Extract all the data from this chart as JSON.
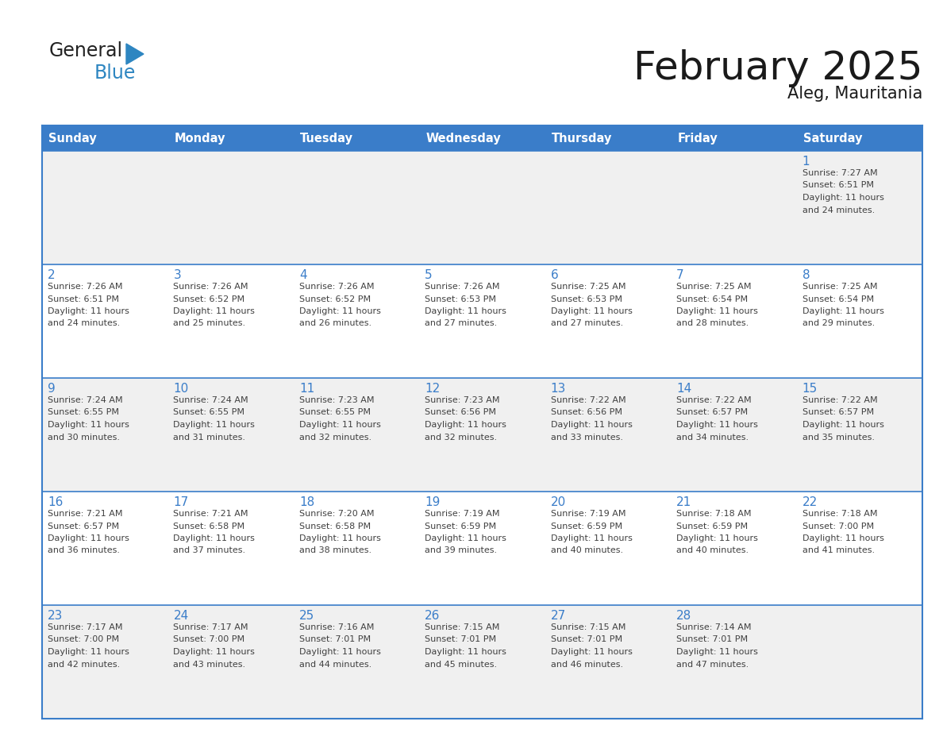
{
  "title": "February 2025",
  "subtitle": "Aleg, Mauritania",
  "days_of_week": [
    "Sunday",
    "Monday",
    "Tuesday",
    "Wednesday",
    "Thursday",
    "Friday",
    "Saturday"
  ],
  "header_bg": "#3A7DC9",
  "header_text_color": "#FFFFFF",
  "cell_bg_odd": "#F0F0F0",
  "cell_bg_even": "#FFFFFF",
  "day_number_color": "#3A7DC9",
  "text_color": "#404040",
  "line_color": "#3A7DC9",
  "logo_general_color": "#222222",
  "logo_blue_color": "#2E86C1",
  "calendar_data": [
    [
      null,
      null,
      null,
      null,
      null,
      null,
      {
        "day": 1,
        "sunrise": "7:27 AM",
        "sunset": "6:51 PM",
        "daylight": "11 hours and 24 minutes."
      }
    ],
    [
      {
        "day": 2,
        "sunrise": "7:26 AM",
        "sunset": "6:51 PM",
        "daylight": "11 hours and 24 minutes."
      },
      {
        "day": 3,
        "sunrise": "7:26 AM",
        "sunset": "6:52 PM",
        "daylight": "11 hours and 25 minutes."
      },
      {
        "day": 4,
        "sunrise": "7:26 AM",
        "sunset": "6:52 PM",
        "daylight": "11 hours and 26 minutes."
      },
      {
        "day": 5,
        "sunrise": "7:26 AM",
        "sunset": "6:53 PM",
        "daylight": "11 hours and 27 minutes."
      },
      {
        "day": 6,
        "sunrise": "7:25 AM",
        "sunset": "6:53 PM",
        "daylight": "11 hours and 27 minutes."
      },
      {
        "day": 7,
        "sunrise": "7:25 AM",
        "sunset": "6:54 PM",
        "daylight": "11 hours and 28 minutes."
      },
      {
        "day": 8,
        "sunrise": "7:25 AM",
        "sunset": "6:54 PM",
        "daylight": "11 hours and 29 minutes."
      }
    ],
    [
      {
        "day": 9,
        "sunrise": "7:24 AM",
        "sunset": "6:55 PM",
        "daylight": "11 hours and 30 minutes."
      },
      {
        "day": 10,
        "sunrise": "7:24 AM",
        "sunset": "6:55 PM",
        "daylight": "11 hours and 31 minutes."
      },
      {
        "day": 11,
        "sunrise": "7:23 AM",
        "sunset": "6:55 PM",
        "daylight": "11 hours and 32 minutes."
      },
      {
        "day": 12,
        "sunrise": "7:23 AM",
        "sunset": "6:56 PM",
        "daylight": "11 hours and 32 minutes."
      },
      {
        "day": 13,
        "sunrise": "7:22 AM",
        "sunset": "6:56 PM",
        "daylight": "11 hours and 33 minutes."
      },
      {
        "day": 14,
        "sunrise": "7:22 AM",
        "sunset": "6:57 PM",
        "daylight": "11 hours and 34 minutes."
      },
      {
        "day": 15,
        "sunrise": "7:22 AM",
        "sunset": "6:57 PM",
        "daylight": "11 hours and 35 minutes."
      }
    ],
    [
      {
        "day": 16,
        "sunrise": "7:21 AM",
        "sunset": "6:57 PM",
        "daylight": "11 hours and 36 minutes."
      },
      {
        "day": 17,
        "sunrise": "7:21 AM",
        "sunset": "6:58 PM",
        "daylight": "11 hours and 37 minutes."
      },
      {
        "day": 18,
        "sunrise": "7:20 AM",
        "sunset": "6:58 PM",
        "daylight": "11 hours and 38 minutes."
      },
      {
        "day": 19,
        "sunrise": "7:19 AM",
        "sunset": "6:59 PM",
        "daylight": "11 hours and 39 minutes."
      },
      {
        "day": 20,
        "sunrise": "7:19 AM",
        "sunset": "6:59 PM",
        "daylight": "11 hours and 40 minutes."
      },
      {
        "day": 21,
        "sunrise": "7:18 AM",
        "sunset": "6:59 PM",
        "daylight": "11 hours and 40 minutes."
      },
      {
        "day": 22,
        "sunrise": "7:18 AM",
        "sunset": "7:00 PM",
        "daylight": "11 hours and 41 minutes."
      }
    ],
    [
      {
        "day": 23,
        "sunrise": "7:17 AM",
        "sunset": "7:00 PM",
        "daylight": "11 hours and 42 minutes."
      },
      {
        "day": 24,
        "sunrise": "7:17 AM",
        "sunset": "7:00 PM",
        "daylight": "11 hours and 43 minutes."
      },
      {
        "day": 25,
        "sunrise": "7:16 AM",
        "sunset": "7:01 PM",
        "daylight": "11 hours and 44 minutes."
      },
      {
        "day": 26,
        "sunrise": "7:15 AM",
        "sunset": "7:01 PM",
        "daylight": "11 hours and 45 minutes."
      },
      {
        "day": 27,
        "sunrise": "7:15 AM",
        "sunset": "7:01 PM",
        "daylight": "11 hours and 46 minutes."
      },
      {
        "day": 28,
        "sunrise": "7:14 AM",
        "sunset": "7:01 PM",
        "daylight": "11 hours and 47 minutes."
      },
      null
    ]
  ]
}
